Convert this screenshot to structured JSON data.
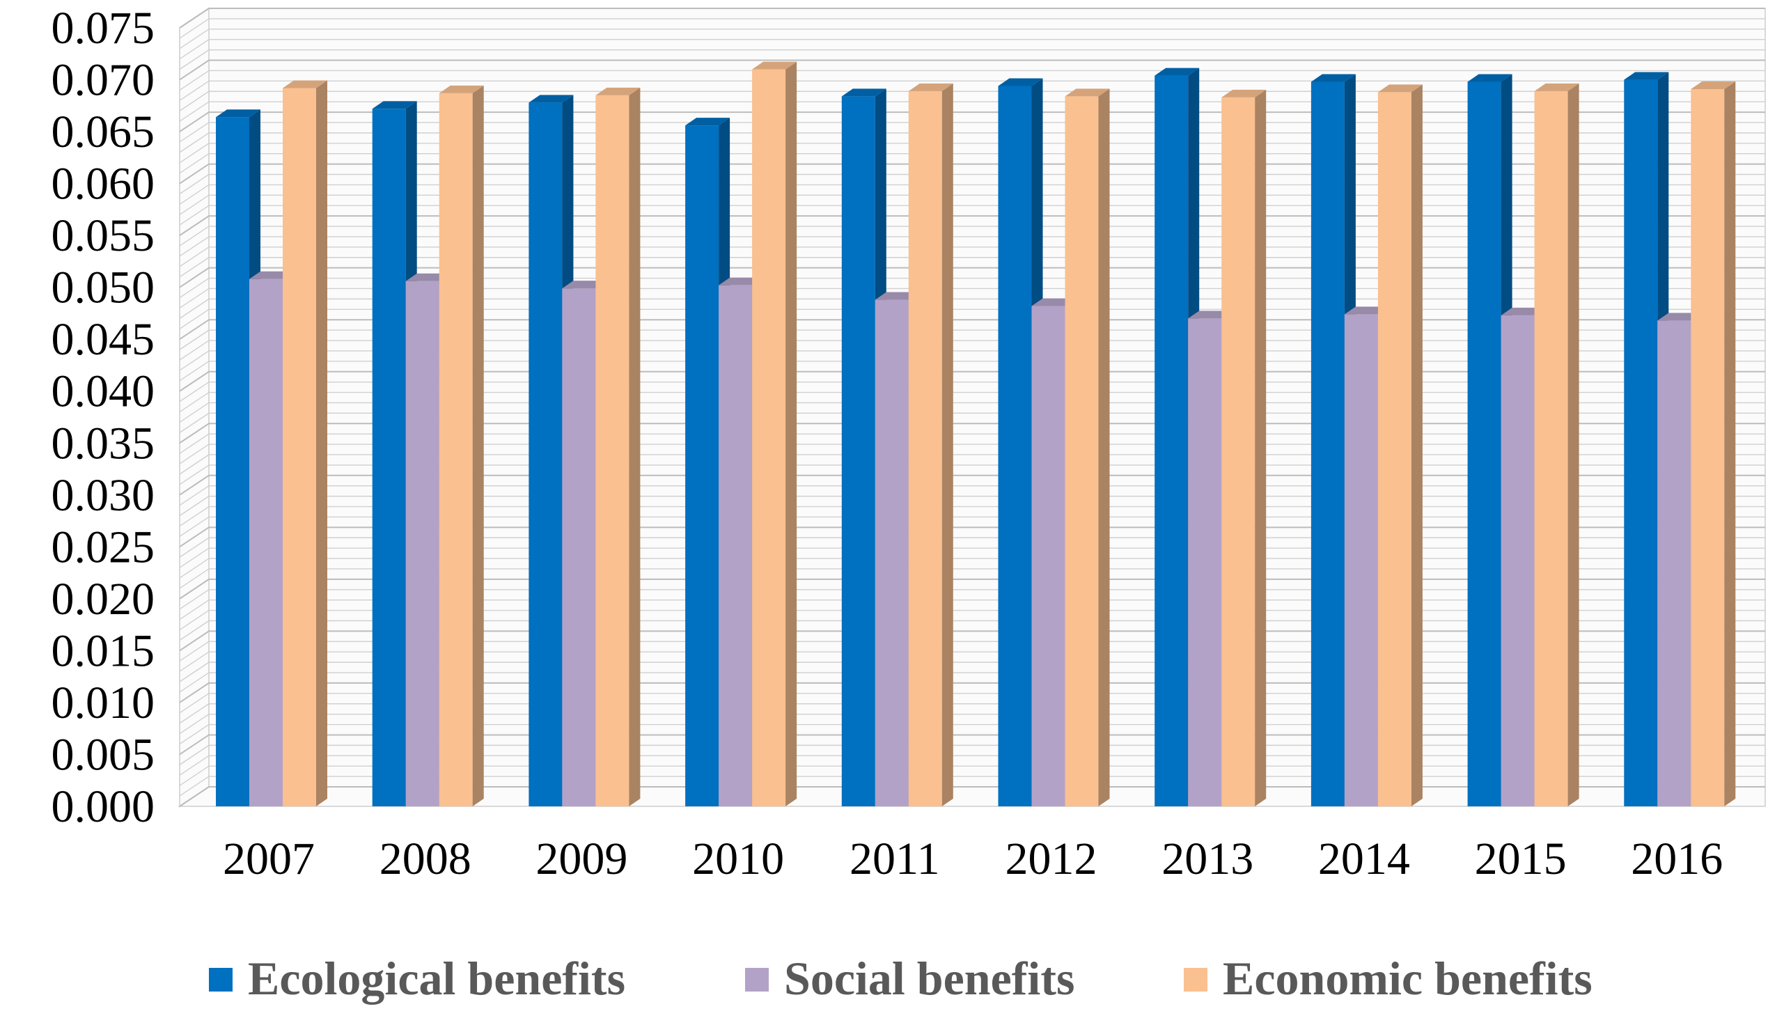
{
  "chart_data": {
    "type": "bar",
    "style": "3d-clustered-column",
    "title": "",
    "xlabel": "",
    "ylabel": "",
    "ylim": [
      0,
      0.075
    ],
    "y_ticks": [
      "0.000",
      "0.005",
      "0.010",
      "0.015",
      "0.020",
      "0.025",
      "0.030",
      "0.035",
      "0.040",
      "0.045",
      "0.050",
      "0.055",
      "0.060",
      "0.065",
      "0.070",
      "0.075"
    ],
    "categories": [
      "2007",
      "2008",
      "2009",
      "2010",
      "2011",
      "2012",
      "2013",
      "2014",
      "2015",
      "2016"
    ],
    "series": [
      {
        "name": "Ecological benefits",
        "color": "#0070c0",
        "values": [
          0.0664,
          0.0672,
          0.0678,
          0.0656,
          0.0684,
          0.0694,
          0.0704,
          0.0698,
          0.0698,
          0.07
        ]
      },
      {
        "name": "Social benefits",
        "color": "#b3a2c7",
        "values": [
          0.0508,
          0.0506,
          0.0499,
          0.0502,
          0.0488,
          0.0482,
          0.047,
          0.0474,
          0.0473,
          0.0468
        ]
      },
      {
        "name": "Economic benefits",
        "color": "#fac090",
        "values": [
          0.0692,
          0.0687,
          0.0685,
          0.071,
          0.0689,
          0.0684,
          0.0683,
          0.0688,
          0.0689,
          0.0691
        ]
      }
    ],
    "legend_position": "bottom"
  }
}
